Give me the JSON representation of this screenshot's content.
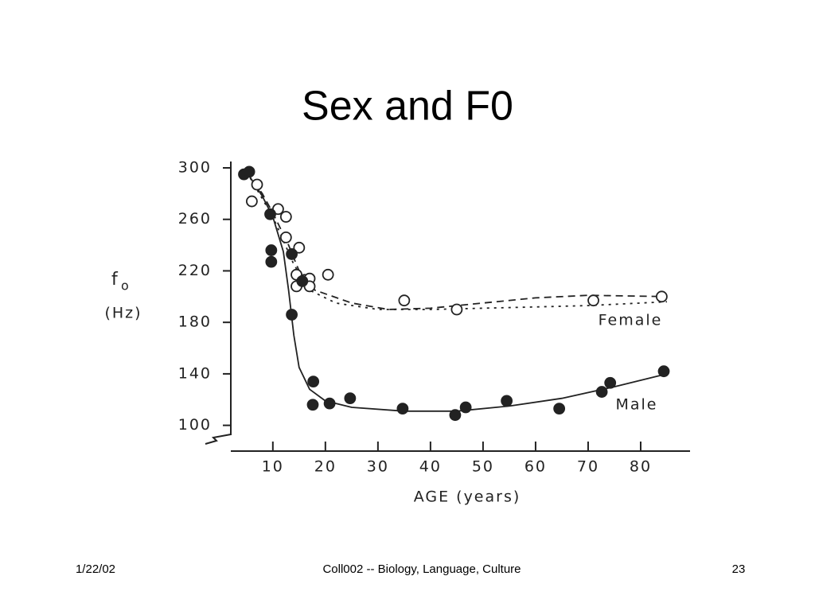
{
  "title": "Sex and F0",
  "footer": {
    "date": "1/22/02",
    "course": "Coll002 -- Biology, Language, Culture",
    "page": "23"
  },
  "chart_data": {
    "type": "scatter",
    "x_label": "AGE (years)",
    "y_label": "f",
    "y_label_sub": "o",
    "y_unit": "(Hz)",
    "xlim": [
      2,
      90
    ],
    "ylim": [
      80,
      300
    ],
    "xticks": [
      10,
      20,
      30,
      40,
      50,
      60,
      70,
      80
    ],
    "yticks": [
      100,
      140,
      180,
      220,
      260,
      300
    ],
    "grid": false,
    "series": [
      {
        "name": "Female",
        "color": "#222222",
        "marker": "open",
        "x": [
          6,
          7,
          11,
          12.5,
          12.5,
          15,
          14.5,
          14.5,
          16,
          17,
          17,
          20.5,
          35,
          45,
          71,
          84
        ],
        "values": [
          274,
          287,
          268,
          262,
          246,
          238,
          217,
          208,
          213,
          214,
          208,
          217,
          197,
          190,
          197,
          200
        ]
      },
      {
        "name": "Male",
        "color": "#222222",
        "marker": "filled",
        "x": [
          4.5,
          5.5,
          9.5,
          9.7,
          9.7,
          13.6,
          13.6,
          15.6,
          17.7,
          17.6,
          20.8,
          24.7,
          34.7,
          44.7,
          46.7,
          54.5,
          64.5,
          72.6,
          74.2,
          84.4
        ],
        "values": [
          295,
          297,
          264,
          236,
          227,
          233,
          186,
          212,
          134,
          116,
          117,
          121,
          113,
          108,
          114,
          119,
          113,
          126,
          133,
          142
        ]
      }
    ],
    "curves": [
      {
        "color": "#222222",
        "dash": "none",
        "x": [
          5,
          8,
          10,
          12,
          13,
          14,
          15,
          17,
          20,
          25,
          35,
          45,
          55,
          65,
          75,
          85
        ],
        "values": [
          297,
          278,
          262,
          235,
          205,
          170,
          145,
          128,
          119,
          114,
          111,
          111,
          115,
          121,
          130,
          140
        ]
      },
      {
        "color": "#222222",
        "dash": "9 6",
        "x": [
          5,
          8,
          10,
          13,
          15,
          18,
          25,
          32,
          40,
          50,
          60,
          70,
          85
        ],
        "values": [
          297,
          280,
          265,
          240,
          220,
          205,
          195,
          190,
          191,
          195,
          199,
          201,
          200
        ]
      },
      {
        "color": "#222222",
        "dash": "3 6",
        "x": [
          5,
          10,
          14,
          17,
          22,
          30,
          40,
          50,
          60,
          70,
          85
        ],
        "values": [
          297,
          262,
          225,
          205,
          195,
          190,
          190,
          191,
          192,
          193,
          196
        ]
      }
    ]
  }
}
